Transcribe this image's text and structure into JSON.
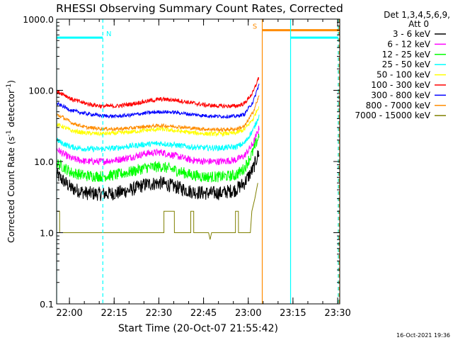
{
  "chart_data": {
    "type": "line",
    "title": "RHESSI Observing Summary Count Rates, Corrected",
    "xlabel": "Start Time (20-Oct-07 21:55:42)",
    "ylabel_main": "Corrected Count Rate (s",
    "ylabel_sup": "-1",
    "ylabel_mid": " detector",
    "ylabel_end": ")",
    "y_scale": "log",
    "ylim": [
      0.1,
      1000
    ],
    "xlim_minutes": [
      0,
      95
    ],
    "x_ticks": [
      {
        "label": "22:00",
        "minute": 4.3
      },
      {
        "label": "22:15",
        "minute": 19.3
      },
      {
        "label": "22:30",
        "minute": 34.3
      },
      {
        "label": "22:45",
        "minute": 49.3
      },
      {
        "label": "23:00",
        "minute": 64.3
      },
      {
        "label": "23:15",
        "minute": 79.3
      },
      {
        "label": "23:30",
        "minute": 94.3
      }
    ],
    "y_ticks": [
      {
        "label": "1000.0",
        "value": 1000
      },
      {
        "label": "100.0",
        "value": 100
      },
      {
        "label": "10.0",
        "value": 10
      },
      {
        "label": "1.0",
        "value": 1
      },
      {
        "label": "0.1",
        "value": 0.1
      }
    ],
    "legend_header": [
      "Det 1,3,4,5,6,9,",
      "Att 0"
    ],
    "legend_placement": "right",
    "series": [
      {
        "name": "3 - 6 keV",
        "color": "#000000",
        "noise": 0.1,
        "points": [
          [
            0,
            6.5
          ],
          [
            2,
            5.5
          ],
          [
            5,
            4.2
          ],
          [
            10,
            3.6
          ],
          [
            15,
            3.5
          ],
          [
            20,
            3.6
          ],
          [
            25,
            4.0
          ],
          [
            30,
            4.8
          ],
          [
            35,
            5.0
          ],
          [
            40,
            4.4
          ],
          [
            45,
            3.8
          ],
          [
            50,
            3.6
          ],
          [
            55,
            3.6
          ],
          [
            60,
            4.0
          ],
          [
            63,
            5
          ],
          [
            66,
            8
          ],
          [
            68,
            14
          ]
        ]
      },
      {
        "name": "6 - 12 keV",
        "color": "#ff00ff",
        "noise": 0.05,
        "points": [
          [
            0,
            15
          ],
          [
            2,
            13
          ],
          [
            5,
            11
          ],
          [
            10,
            10
          ],
          [
            15,
            10
          ],
          [
            20,
            10.5
          ],
          [
            25,
            11.5
          ],
          [
            30,
            13
          ],
          [
            35,
            13.5
          ],
          [
            40,
            12
          ],
          [
            45,
            10.5
          ],
          [
            50,
            10
          ],
          [
            55,
            10
          ],
          [
            60,
            10.5
          ],
          [
            63,
            12
          ],
          [
            66,
            18
          ],
          [
            68,
            30
          ]
        ]
      },
      {
        "name": "12 - 25 keV",
        "color": "#00ff00",
        "noise": 0.08,
        "points": [
          [
            0,
            9.5
          ],
          [
            2,
            8.5
          ],
          [
            5,
            7
          ],
          [
            10,
            6.3
          ],
          [
            15,
            6.2
          ],
          [
            20,
            6.5
          ],
          [
            25,
            7.2
          ],
          [
            30,
            8.2
          ],
          [
            35,
            8.5
          ],
          [
            40,
            7.5
          ],
          [
            45,
            6.5
          ],
          [
            50,
            6.1
          ],
          [
            55,
            6.1
          ],
          [
            60,
            6.4
          ],
          [
            63,
            8
          ],
          [
            66,
            14
          ],
          [
            68,
            24
          ]
        ]
      },
      {
        "name": "25 - 50 keV",
        "color": "#00ffff",
        "noise": 0.04,
        "points": [
          [
            0,
            20
          ],
          [
            2,
            18
          ],
          [
            5,
            16
          ],
          [
            10,
            15
          ],
          [
            15,
            15
          ],
          [
            20,
            15.5
          ],
          [
            25,
            16.5
          ],
          [
            30,
            17.5
          ],
          [
            35,
            18
          ],
          [
            40,
            17
          ],
          [
            45,
            16
          ],
          [
            50,
            15.5
          ],
          [
            55,
            15.5
          ],
          [
            60,
            16
          ],
          [
            63,
            18
          ],
          [
            66,
            28
          ],
          [
            68,
            45
          ]
        ]
      },
      {
        "name": "50 - 100 keV",
        "color": "#ffff00",
        "noise": 0.03,
        "points": [
          [
            0,
            33
          ],
          [
            2,
            31
          ],
          [
            5,
            27
          ],
          [
            10,
            25
          ],
          [
            15,
            24.5
          ],
          [
            20,
            25
          ],
          [
            25,
            26
          ],
          [
            30,
            27.5
          ],
          [
            35,
            28.5
          ],
          [
            40,
            27
          ],
          [
            45,
            25.5
          ],
          [
            50,
            24.5
          ],
          [
            55,
            24.5
          ],
          [
            60,
            25
          ],
          [
            63,
            28
          ],
          [
            66,
            40
          ],
          [
            68,
            62
          ]
        ]
      },
      {
        "name": "100 - 300 keV",
        "color": "#ff0000",
        "noise": 0.03,
        "points": [
          [
            0,
            95
          ],
          [
            2,
            90
          ],
          [
            5,
            75
          ],
          [
            10,
            65
          ],
          [
            15,
            60
          ],
          [
            20,
            60
          ],
          [
            25,
            64
          ],
          [
            30,
            70
          ],
          [
            35,
            75
          ],
          [
            40,
            73
          ],
          [
            45,
            67
          ],
          [
            50,
            62
          ],
          [
            55,
            60
          ],
          [
            60,
            60
          ],
          [
            63,
            65
          ],
          [
            66,
            95
          ],
          [
            68,
            160
          ]
        ]
      },
      {
        "name": "300 - 800 keV",
        "color": "#0000ff",
        "noise": 0.025,
        "points": [
          [
            0,
            65
          ],
          [
            2,
            60
          ],
          [
            5,
            52
          ],
          [
            10,
            47
          ],
          [
            15,
            44
          ],
          [
            20,
            43
          ],
          [
            25,
            45
          ],
          [
            30,
            48
          ],
          [
            35,
            50
          ],
          [
            40,
            49
          ],
          [
            45,
            46
          ],
          [
            50,
            44
          ],
          [
            55,
            43
          ],
          [
            60,
            43
          ],
          [
            63,
            46
          ],
          [
            66,
            70
          ],
          [
            68,
            125
          ]
        ]
      },
      {
        "name": "800 - 7000 keV",
        "color": "#ff8c00",
        "noise": 0.025,
        "points": [
          [
            0,
            45
          ],
          [
            2,
            42
          ],
          [
            5,
            35
          ],
          [
            10,
            30
          ],
          [
            15,
            29
          ],
          [
            20,
            28.5
          ],
          [
            25,
            29.5
          ],
          [
            30,
            31
          ],
          [
            35,
            32
          ],
          [
            40,
            31
          ],
          [
            45,
            29.5
          ],
          [
            50,
            28.5
          ],
          [
            55,
            28
          ],
          [
            60,
            28.5
          ],
          [
            63,
            31
          ],
          [
            66,
            50
          ],
          [
            68,
            85
          ]
        ]
      },
      {
        "name": "7000 - 15000 keV",
        "color": "#808000",
        "noise": 0,
        "points": [
          [
            0,
            2
          ],
          [
            1,
            2
          ],
          [
            1.01,
            1
          ],
          [
            36,
            1
          ],
          [
            36.01,
            2
          ],
          [
            39.5,
            2
          ],
          [
            39.51,
            1
          ],
          [
            45,
            1
          ],
          [
            45.01,
            2
          ],
          [
            46,
            2
          ],
          [
            46.01,
            1
          ],
          [
            51,
            1
          ],
          [
            51.5,
            0.8
          ],
          [
            52,
            1
          ],
          [
            60,
            1
          ],
          [
            60.01,
            2
          ],
          [
            61,
            2
          ],
          [
            61.01,
            1
          ],
          [
            65,
            1
          ],
          [
            65.5,
            2
          ],
          [
            66.5,
            3
          ],
          [
            67.5,
            5
          ]
        ]
      }
    ],
    "indicators": [
      {
        "label": "N",
        "color": "#00ffff",
        "bar_from": 0,
        "bar_to": 15.5,
        "bar_y": 550,
        "solid_at": [
          0
        ],
        "dashed_at": [
          15.5
        ],
        "label_at": 17.5
      },
      {
        "label": "S",
        "color": "#ff8c00",
        "bar_from": 69,
        "bar_to": 95,
        "bar_y": 700,
        "solid_at": [
          69
        ],
        "dashed_at": [
          94.8
        ],
        "label_at": 66.5
      },
      {
        "label": "",
        "color": "#00ffff",
        "bar_from": 78.5,
        "bar_to": 94.5,
        "bar_y": 550,
        "solid_at": [
          78.5
        ],
        "dashed_at": [
          94.5
        ],
        "label_at": null
      }
    ]
  },
  "footer_timestamp": "16-Oct-2021 19:36"
}
